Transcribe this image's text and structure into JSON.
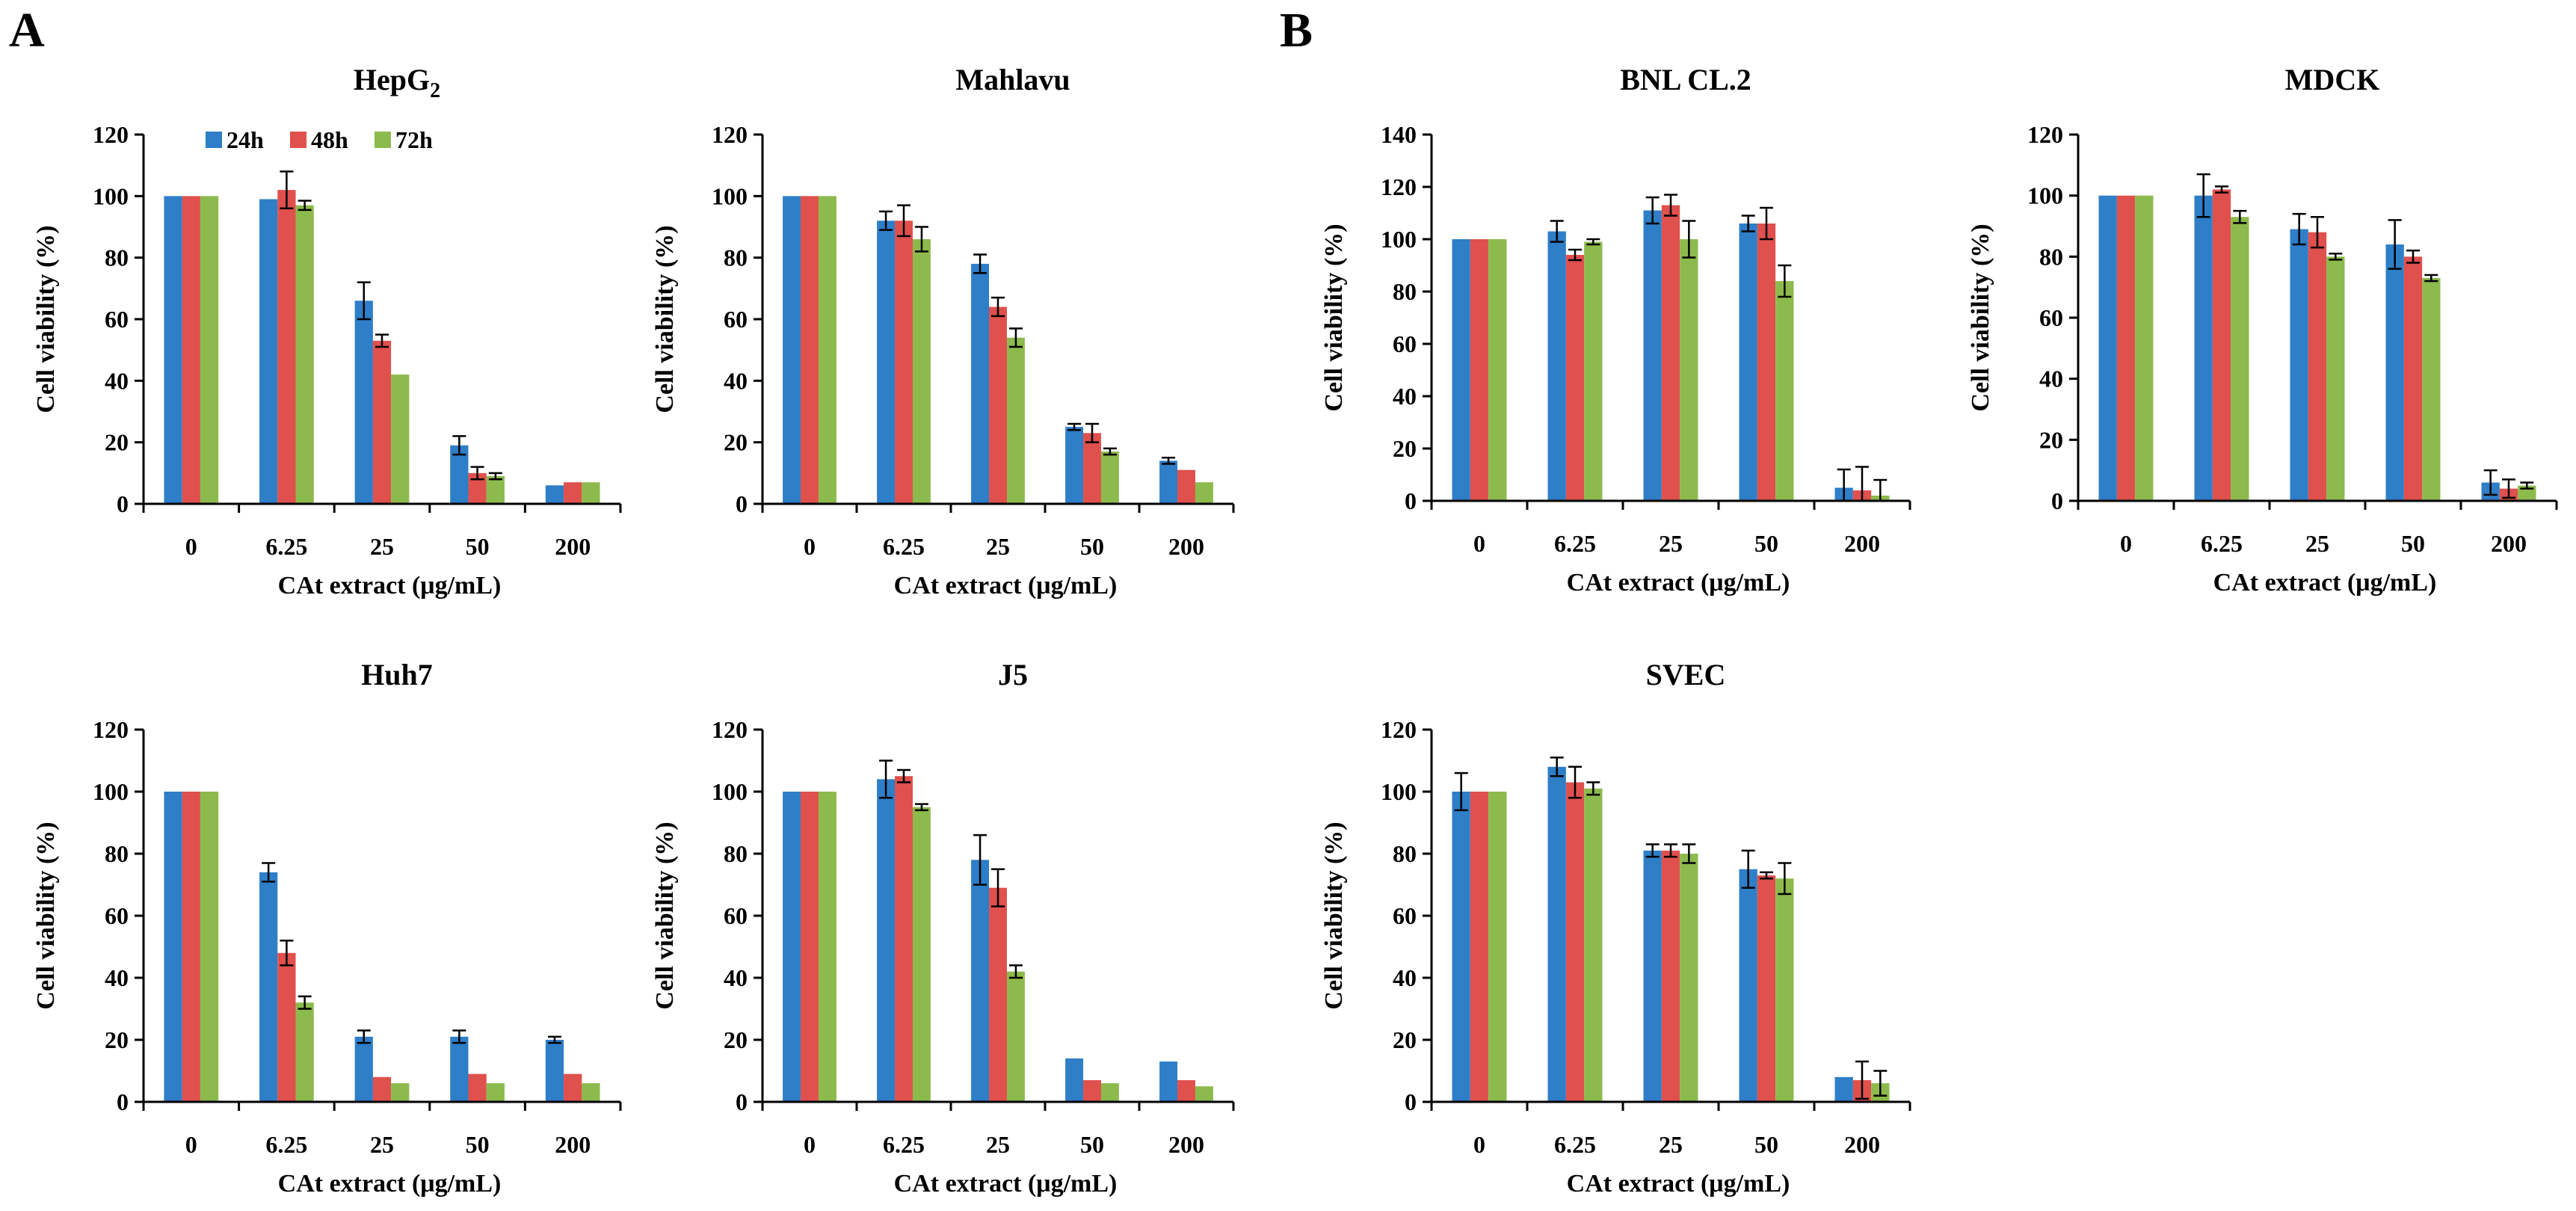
{
  "figure": {
    "panel_letters": [
      "A",
      "B"
    ],
    "legend": {
      "placement": "top-right inside HepG2 chart",
      "items": [
        {
          "label": "24h",
          "color": "#2e7ec8"
        },
        {
          "label": "48h",
          "color": "#e0504d"
        },
        {
          "label": "72h",
          "color": "#8dba4c"
        }
      ]
    }
  },
  "chart_data": [
    {
      "type": "bar",
      "title": "HepG",
      "title_subscript": "2",
      "xlabel": "CAt extract  (μg/mL)",
      "ylabel": "Cell viability  (%)",
      "categories": [
        "0",
        "6.25",
        "25",
        "50",
        "200"
      ],
      "ylim": [
        0,
        120
      ],
      "yticks": [
        "0",
        "20",
        "40",
        "60",
        "80",
        "100",
        "120"
      ],
      "series": [
        {
          "name": "24h",
          "values": [
            100,
            99,
            66,
            19,
            6
          ],
          "errors": [
            0.5,
            0.5,
            6,
            3,
            0.5
          ]
        },
        {
          "name": "48h",
          "values": [
            100,
            102,
            53,
            10,
            7
          ],
          "errors": [
            0.5,
            6,
            2,
            2,
            0.5
          ]
        },
        {
          "name": "72h",
          "values": [
            100,
            97,
            42,
            9,
            7
          ],
          "errors": [
            0.5,
            1.5,
            0.5,
            1,
            0.5
          ]
        }
      ]
    },
    {
      "type": "bar",
      "title": "Mahlavu",
      "xlabel": "CAt extract  (μg/mL)",
      "ylabel": "Cell viability  (%)",
      "categories": [
        "0",
        "6.25",
        "25",
        "50",
        "200"
      ],
      "ylim": [
        0,
        120
      ],
      "yticks": [
        "0",
        "20",
        "40",
        "60",
        "80",
        "100",
        "120"
      ],
      "series": [
        {
          "name": "24h",
          "values": [
            100,
            92,
            78,
            25,
            14
          ],
          "errors": [
            0.5,
            3,
            3,
            1,
            1
          ]
        },
        {
          "name": "48h",
          "values": [
            100,
            92,
            64,
            23,
            11
          ],
          "errors": [
            0.5,
            5,
            3,
            3,
            0.5
          ]
        },
        {
          "name": "72h",
          "values": [
            100,
            86,
            54,
            17,
            7
          ],
          "errors": [
            0.5,
            4,
            3,
            1,
            0.5
          ]
        }
      ]
    },
    {
      "type": "bar",
      "title": "BNL CL.2",
      "xlabel": "CAt extract  (μg/mL)",
      "ylabel": "Cell viability  (%)",
      "categories": [
        "0",
        "6.25",
        "25",
        "50",
        "200"
      ],
      "ylim": [
        0,
        140
      ],
      "yticks": [
        "0",
        "20",
        "40",
        "60",
        "80",
        "100",
        "120",
        "140"
      ],
      "series": [
        {
          "name": "24h",
          "values": [
            100,
            103,
            111,
            106,
            5
          ],
          "errors": [
            0.5,
            4,
            5,
            3,
            7
          ]
        },
        {
          "name": "48h",
          "values": [
            100,
            94,
            113,
            106,
            4
          ],
          "errors": [
            0.5,
            2,
            4,
            6,
            9
          ]
        },
        {
          "name": "72h",
          "values": [
            100,
            99,
            100,
            84,
            2
          ],
          "errors": [
            0.5,
            1,
            7,
            6,
            6
          ]
        }
      ]
    },
    {
      "type": "bar",
      "title": "MDCK",
      "xlabel": "CAt extract  (μg/mL)",
      "ylabel": "Cell viability  (%)",
      "categories": [
        "0",
        "6.25",
        "25",
        "50",
        "200"
      ],
      "ylim": [
        0,
        120
      ],
      "yticks": [
        "0",
        "20",
        "40",
        "60",
        "80",
        "100",
        "120"
      ],
      "series": [
        {
          "name": "24h",
          "values": [
            100,
            100,
            89,
            84,
            6
          ],
          "errors": [
            0.5,
            7,
            5,
            8,
            4
          ]
        },
        {
          "name": "48h",
          "values": [
            100,
            102,
            88,
            80,
            4
          ],
          "errors": [
            0.5,
            1,
            5,
            2,
            3
          ]
        },
        {
          "name": "72h",
          "values": [
            100,
            93,
            80,
            73,
            5
          ],
          "errors": [
            0.5,
            2,
            1,
            1,
            1
          ]
        }
      ]
    },
    {
      "type": "bar",
      "title": "Huh7",
      "xlabel": "CAt extract  (μg/mL)",
      "ylabel": "Cell viability  (%)",
      "categories": [
        "0",
        "6.25",
        "25",
        "50",
        "200"
      ],
      "ylim": [
        0,
        120
      ],
      "yticks": [
        "0",
        "20",
        "40",
        "60",
        "80",
        "100",
        "120"
      ],
      "series": [
        {
          "name": "24h",
          "values": [
            100,
            74,
            21,
            21,
            20
          ],
          "errors": [
            0.5,
            3,
            2,
            2,
            1
          ]
        },
        {
          "name": "48h",
          "values": [
            100,
            48,
            8,
            9,
            9
          ],
          "errors": [
            0.5,
            4,
            0.5,
            0.5,
            0.5
          ]
        },
        {
          "name": "72h",
          "values": [
            100,
            32,
            6,
            6,
            6
          ],
          "errors": [
            0.5,
            2,
            0.5,
            0.5,
            0.5
          ]
        }
      ]
    },
    {
      "type": "bar",
      "title": "J5",
      "xlabel": "CAt extract  (μg/mL)",
      "ylabel": "Cell viability  (%)",
      "categories": [
        "0",
        "6.25",
        "25",
        "50",
        "200"
      ],
      "ylim": [
        0,
        120
      ],
      "yticks": [
        "0",
        "20",
        "40",
        "60",
        "80",
        "100",
        "120"
      ],
      "series": [
        {
          "name": "24h",
          "values": [
            100,
            104,
            78,
            14,
            13
          ],
          "errors": [
            0.5,
            6,
            8,
            0.5,
            0.5
          ]
        },
        {
          "name": "48h",
          "values": [
            100,
            105,
            69,
            7,
            7
          ],
          "errors": [
            0.5,
            2,
            6,
            0.5,
            0.5
          ]
        },
        {
          "name": "72h",
          "values": [
            100,
            95,
            42,
            6,
            5
          ],
          "errors": [
            0.5,
            1,
            2,
            0.5,
            0.5
          ]
        }
      ]
    },
    {
      "type": "bar",
      "title": "SVEC",
      "xlabel": "CAt extract  (μg/mL)",
      "ylabel": "Cell viability  (%)",
      "categories": [
        "0",
        "6.25",
        "25",
        "50",
        "200"
      ],
      "ylim": [
        0,
        120
      ],
      "yticks": [
        "0",
        "20",
        "40",
        "60",
        "80",
        "100",
        "120"
      ],
      "series": [
        {
          "name": "24h",
          "values": [
            100,
            108,
            81,
            75,
            8
          ],
          "errors": [
            6,
            3,
            2,
            6,
            0.5
          ]
        },
        {
          "name": "48h",
          "values": [
            100,
            103,
            81,
            73,
            7
          ],
          "errors": [
            0.5,
            5,
            2,
            1,
            6
          ]
        },
        {
          "name": "72h",
          "values": [
            100,
            101,
            80,
            72,
            6
          ],
          "errors": [
            0.5,
            2,
            3,
            5,
            4
          ]
        }
      ]
    }
  ]
}
